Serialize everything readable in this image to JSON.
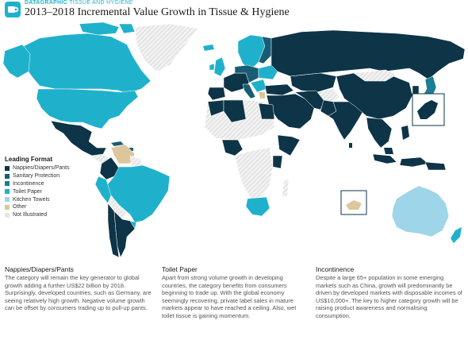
{
  "header": {
    "kicker": "DATAGRAPHIC",
    "topic": "TISSUE AND HYGIENE",
    "title": "2013–2018 Incremental Value Growth in Tissue & Hygiene",
    "logo_icon": "euromonitor-logo-icon"
  },
  "colors": {
    "nappies": "#0d3447",
    "sanitary": "#185d73",
    "incontinence": "#1b7d95",
    "toilet_paper": "#1fb1cc",
    "kitchen_towels": "#9fd5e9",
    "other": "#dcc79c",
    "not_illustrated": "#dcdcdc"
  },
  "legend": {
    "title": "Leading Format",
    "items": [
      {
        "label": "Nappies/Diapers/Pants",
        "color": "#0d3447"
      },
      {
        "label": "Sanitary Protection",
        "color": "#185d73"
      },
      {
        "label": "Incontinence",
        "color": "#1b7d95"
      },
      {
        "label": "Toilet Paper",
        "color": "#1fb1cc"
      },
      {
        "label": "Kitchen Towels",
        "color": "#9fd5e9"
      },
      {
        "label": "Other",
        "color": "#dcc79c"
      },
      {
        "label": "Not Illustrated",
        "color": "#dcdcdc"
      }
    ]
  },
  "columns": [
    {
      "heading": "Nappies/Diapers/Pants",
      "body": "The category will remain the key generator to global growth adding a further US$22 billion by 2018. Surprisingly, developed countries, such as Germany, are seeing relatively high growth. Negative volume growth can be offset by consumers trading up to pull-up pants."
    },
    {
      "heading": "Toilet Paper",
      "body": "Apart from strong volume growth in developing countries, the category benefits from consumers beginning to trade up. With the global economy seemingly recovering, private label sales in mature markets appear to have reached a ceiling. Also, wet toilet tissue is gaining momentum."
    },
    {
      "heading": "Incontinence",
      "body": "Despite a large 65+ population in some emerging markets such as China, growth will predominantly be driven by developed markets with disposable incomes of US$10,000+. The key to higher category growth will be raising product awareness and normalising consumption."
    }
  ]
}
